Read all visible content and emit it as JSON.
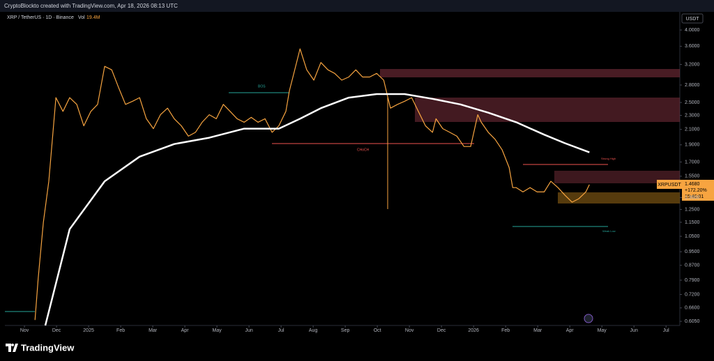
{
  "header": {
    "credit": "CryptoBlockto created with TradingView.com, Apr 18, 2026 08:13 UTC",
    "symbol": "XRP / TetherUS · 1D · Binance",
    "vol_label": "Vol",
    "vol_value": "19.4M",
    "currency": "USDT"
  },
  "price_tag": {
    "ticker": "XRPUSDT",
    "price": "1.4680",
    "change": "+172.20%",
    "countdown": "15:46:01"
  },
  "footer": {
    "logo": "TradingView"
  },
  "chart_data": {
    "type": "line",
    "log_scale": true,
    "grid": false,
    "xlim": [
      -0.61,
      20.43
    ],
    "ylim": [
      0.589,
      4.5
    ],
    "xticks": [
      {
        "value": 0,
        "label": "Nov"
      },
      {
        "value": 1,
        "label": "Dec"
      },
      {
        "value": 2,
        "label": "2025"
      },
      {
        "value": 3,
        "label": "Feb"
      },
      {
        "value": 4,
        "label": "Mar"
      },
      {
        "value": 5,
        "label": "Apr"
      },
      {
        "value": 6,
        "label": "May"
      },
      {
        "value": 7,
        "label": "Jun"
      },
      {
        "value": 8,
        "label": "Jul"
      },
      {
        "value": 9,
        "label": "Aug"
      },
      {
        "value": 10,
        "label": "Sep"
      },
      {
        "value": 11,
        "label": "Oct"
      },
      {
        "value": 12,
        "label": "Nov"
      },
      {
        "value": 13,
        "label": "Dec"
      },
      {
        "value": 14,
        "label": "2026"
      },
      {
        "value": 15,
        "label": "Feb"
      },
      {
        "value": 16,
        "label": "Mar"
      },
      {
        "value": 17,
        "label": "Apr"
      },
      {
        "value": 18,
        "label": "May"
      },
      {
        "value": 19,
        "label": "Jun"
      },
      {
        "value": 20,
        "label": "Jul"
      }
    ],
    "yticks": [
      {
        "value": 4,
        "label": "4.0000"
      },
      {
        "value": 3.6,
        "label": "3.6000"
      },
      {
        "value": 3.2,
        "label": "3.2000"
      },
      {
        "value": 2.8,
        "label": "2.8000"
      },
      {
        "value": 2.5,
        "label": "2.5000"
      },
      {
        "value": 2.3,
        "label": "2.3000"
      },
      {
        "value": 2.1,
        "label": "2.1000"
      },
      {
        "value": 1.9,
        "label": "1.9000"
      },
      {
        "value": 1.7,
        "label": "1.7000"
      },
      {
        "value": 1.55,
        "label": "1.5500"
      },
      {
        "value": 1.35,
        "label": "1.3500"
      },
      {
        "value": 1.25,
        "label": "1.2500"
      },
      {
        "value": 1.15,
        "label": "1.1500"
      },
      {
        "value": 1.05,
        "label": "1.0500"
      },
      {
        "value": 0.95,
        "label": "0.9500"
      },
      {
        "value": 0.87,
        "label": "0.8700"
      },
      {
        "value": 0.79,
        "label": "0.7900"
      },
      {
        "value": 0.72,
        "label": "0.7200"
      },
      {
        "value": 0.66,
        "label": "0.6600"
      },
      {
        "value": 0.605,
        "label": "0.6050"
      }
    ],
    "series": [
      {
        "name": "XRPUSDT",
        "color": "#f7a440",
        "x": [
          0.33,
          0.43,
          0.59,
          0.76,
          0.98,
          1.2,
          1.41,
          1.63,
          1.85,
          2.07,
          2.28,
          2.5,
          2.72,
          2.93,
          3.15,
          3.37,
          3.59,
          3.8,
          4.02,
          4.24,
          4.46,
          4.67,
          4.89,
          5.11,
          5.33,
          5.54,
          5.76,
          5.98,
          6.2,
          6.41,
          6.63,
          6.85,
          7.07,
          7.28,
          7.5,
          7.72,
          7.93,
          8.15,
          8.26,
          8.37,
          8.59,
          8.8,
          9.02,
          9.24,
          9.46,
          9.67,
          9.89,
          10.11,
          10.33,
          10.54,
          10.76,
          10.98,
          11.2,
          11.33,
          11.41,
          11.63,
          11.85,
          12.07,
          12.28,
          12.5,
          12.72,
          12.83,
          13.04,
          13.26,
          13.48,
          13.7,
          13.91,
          14.13,
          14.24,
          14.46,
          14.67,
          14.89,
          15.11,
          15.22,
          15.33,
          15.54,
          15.76,
          15.98,
          16.2,
          16.41,
          16.63,
          16.85,
          17.07,
          17.28,
          17.5,
          17.61
        ],
        "values": [
          0.61,
          0.8,
          1.15,
          1.5,
          2.58,
          2.36,
          2.58,
          2.47,
          2.15,
          2.36,
          2.47,
          3.16,
          3.09,
          2.76,
          2.47,
          2.52,
          2.58,
          2.25,
          2.11,
          2.31,
          2.41,
          2.25,
          2.15,
          2.01,
          2.06,
          2.2,
          2.31,
          2.25,
          2.47,
          2.36,
          2.25,
          2.2,
          2.27,
          2.2,
          2.25,
          2.06,
          2.15,
          2.36,
          2.7,
          2.95,
          3.54,
          3.09,
          2.89,
          3.24,
          3.09,
          3.02,
          2.89,
          2.95,
          3.09,
          2.95,
          2.95,
          3.02,
          2.89,
          2.58,
          2.41,
          2.47,
          2.52,
          2.58,
          2.36,
          2.15,
          2.06,
          2.25,
          2.11,
          2.06,
          2.01,
          1.88,
          1.88,
          2.31,
          2.2,
          2.06,
          1.97,
          1.84,
          1.64,
          1.44,
          1.44,
          1.4,
          1.44,
          1.4,
          1.4,
          1.5,
          1.44,
          1.37,
          1.31,
          1.34,
          1.4,
          1.468
        ]
      },
      {
        "name": "MA",
        "color": "#ffffff",
        "x": [
          0.65,
          1.41,
          2.5,
          3.59,
          4.67,
          5.76,
          6.85,
          7.93,
          8.59,
          9.24,
          10.11,
          10.98,
          11.85,
          12.72,
          13.59,
          14.46,
          15.33,
          16.2,
          16.85,
          17.61
        ],
        "values": [
          0.589,
          1.1,
          1.5,
          1.76,
          1.91,
          1.99,
          2.11,
          2.11,
          2.25,
          2.41,
          2.58,
          2.64,
          2.64,
          2.56,
          2.47,
          2.34,
          2.2,
          2.03,
          1.92,
          1.81
        ]
      }
    ],
    "annotations": [
      "BOS",
      "CHoCH",
      "Strong High",
      "Weak Low"
    ]
  }
}
